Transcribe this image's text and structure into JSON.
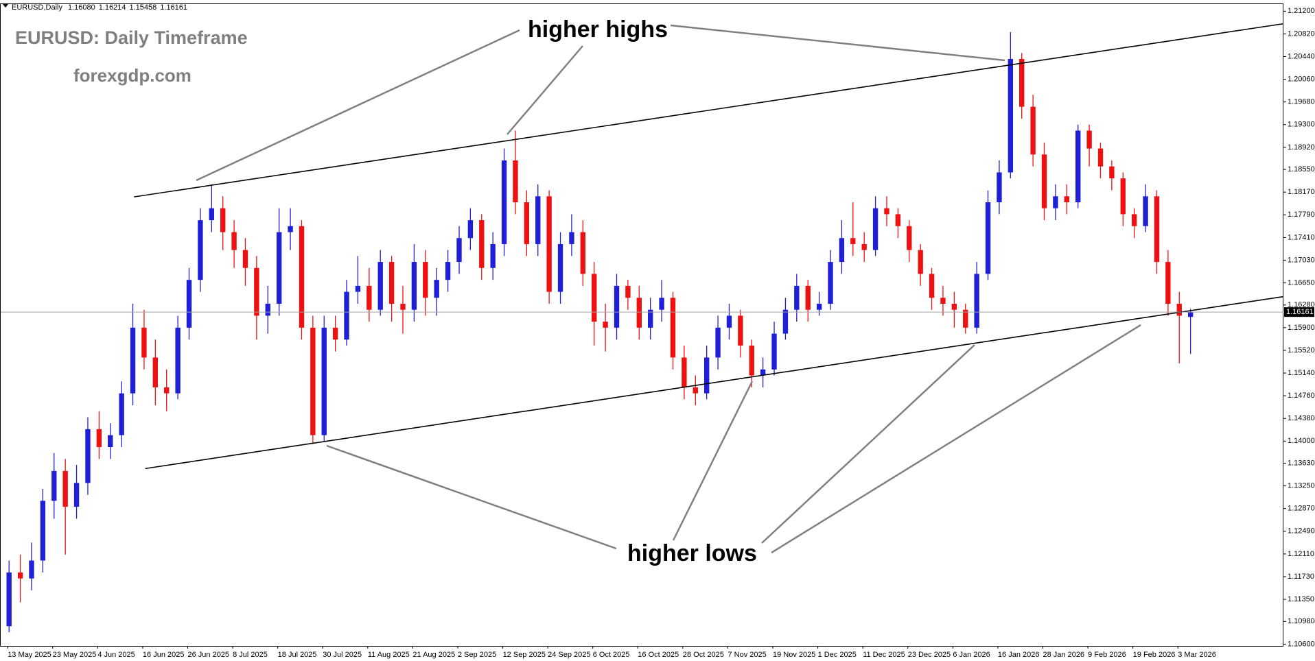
{
  "chart_data": {
    "type": "candlestick",
    "title": "EURUSD: Daily Timeframe",
    "subtitle": "forexgdp.com",
    "symbol": "EURUSD,Daily",
    "ohlc_labels": [
      "1.16080",
      "1.16214",
      "1.15458",
      "1.16161"
    ],
    "annotations": [
      "higher highs",
      "higher lows"
    ],
    "bull_color": "#1f1fd6",
    "bear_color": "#ee1111",
    "ylim": [
      1.1057,
      1.2133
    ],
    "yticks": [
      {
        "value": 1.212,
        "label": "1.21200"
      },
      {
        "value": 1.2082,
        "label": "1.20820"
      },
      {
        "value": 1.2044,
        "label": "1.20440"
      },
      {
        "value": 1.2006,
        "label": "1.20060"
      },
      {
        "value": 1.1968,
        "label": "1.19680"
      },
      {
        "value": 1.193,
        "label": "1.19300"
      },
      {
        "value": 1.1892,
        "label": "1.18920"
      },
      {
        "value": 1.1855,
        "label": "1.18550"
      },
      {
        "value": 1.1817,
        "label": "1.18170"
      },
      {
        "value": 1.1779,
        "label": "1.17790"
      },
      {
        "value": 1.1741,
        "label": "1.17410"
      },
      {
        "value": 1.1703,
        "label": "1.17030"
      },
      {
        "value": 1.1665,
        "label": "1.16650"
      },
      {
        "value": 1.1628,
        "label": "1.16280"
      },
      {
        "value": 1.159,
        "label": "1.15900"
      },
      {
        "value": 1.1552,
        "label": "1.15520"
      },
      {
        "value": 1.1514,
        "label": "1.15140"
      },
      {
        "value": 1.1476,
        "label": "1.14760"
      },
      {
        "value": 1.1438,
        "label": "1.14380"
      },
      {
        "value": 1.14,
        "label": "1.14000"
      },
      {
        "value": 1.1363,
        "label": "1.13630"
      },
      {
        "value": 1.1325,
        "label": "1.13250"
      },
      {
        "value": 1.1287,
        "label": "1.12870"
      },
      {
        "value": 1.1249,
        "label": "1.12490"
      },
      {
        "value": 1.1211,
        "label": "1.12110"
      },
      {
        "value": 1.1173,
        "label": "1.11730"
      },
      {
        "value": 1.1135,
        "label": "1.11350"
      },
      {
        "value": 1.1098,
        "label": "1.10980"
      },
      {
        "value": 1.106,
        "label": "1.10600"
      }
    ],
    "categories": [
      "13 May 2025",
      null,
      null,
      null,
      "23 May 2025",
      null,
      null,
      null,
      "4 Jun 2025",
      null,
      null,
      null,
      "16 Jun 2025",
      null,
      null,
      null,
      "26 Jun 2025",
      null,
      null,
      null,
      "8 Jul 2025",
      null,
      null,
      null,
      "18 Jul 2025",
      null,
      null,
      null,
      "30 Jul 2025",
      null,
      null,
      null,
      "11 Aug 2025",
      null,
      null,
      null,
      "21 Aug 2025",
      null,
      null,
      null,
      "2 Sep 2025",
      null,
      null,
      null,
      "12 Sep 2025",
      null,
      null,
      null,
      "24 Sep 2025",
      null,
      null,
      null,
      "6 Oct 2025",
      null,
      null,
      null,
      "16 Oct 2025",
      null,
      null,
      null,
      "28 Oct 2025",
      null,
      null,
      null,
      "7 Nov 2025",
      null,
      null,
      null,
      "19 Nov 2025",
      null,
      null,
      null,
      "1 Dec 2025",
      null,
      null,
      null,
      "11 Dec 2025",
      null,
      null,
      null,
      "23 Dec 2025",
      null,
      null,
      null,
      "6 Jan 2026",
      null,
      null,
      null,
      "16 Jan 2026",
      null,
      null,
      null,
      "28 Jan 2026",
      null,
      null,
      null,
      "9 Feb 2026",
      null,
      null,
      null,
      "19 Feb 2026",
      null,
      null,
      null,
      "3 Mar 2026",
      null
    ],
    "candles": [
      [
        1.109,
        1.12,
        1.108,
        1.118
      ],
      [
        1.118,
        1.121,
        1.113,
        1.117
      ],
      [
        1.117,
        1.123,
        1.115,
        1.12
      ],
      [
        1.12,
        1.132,
        1.118,
        1.13
      ],
      [
        1.13,
        1.138,
        1.127,
        1.135
      ],
      [
        1.135,
        1.137,
        1.121,
        1.129
      ],
      [
        1.129,
        1.136,
        1.127,
        1.133
      ],
      [
        1.133,
        1.144,
        1.131,
        1.142
      ],
      [
        1.142,
        1.145,
        1.137,
        1.139
      ],
      [
        1.139,
        1.143,
        1.137,
        1.141
      ],
      [
        1.141,
        1.15,
        1.139,
        1.148
      ],
      [
        1.148,
        1.163,
        1.146,
        1.159
      ],
      [
        1.159,
        1.162,
        1.152,
        1.154
      ],
      [
        1.154,
        1.157,
        1.146,
        1.149
      ],
      [
        1.149,
        1.152,
        1.145,
        1.148
      ],
      [
        1.148,
        1.161,
        1.147,
        1.159
      ],
      [
        1.159,
        1.169,
        1.157,
        1.167
      ],
      [
        1.167,
        1.179,
        1.165,
        1.177
      ],
      [
        1.177,
        1.183,
        1.175,
        1.179
      ],
      [
        1.179,
        1.181,
        1.172,
        1.175
      ],
      [
        1.175,
        1.177,
        1.169,
        1.172
      ],
      [
        1.172,
        1.174,
        1.166,
        1.169
      ],
      [
        1.169,
        1.171,
        1.157,
        1.161
      ],
      [
        1.161,
        1.166,
        1.158,
        1.163
      ],
      [
        1.163,
        1.179,
        1.161,
        1.175
      ],
      [
        1.175,
        1.179,
        1.172,
        1.176
      ],
      [
        1.176,
        1.177,
        1.157,
        1.159
      ],
      [
        1.159,
        1.161,
        1.1395,
        1.141
      ],
      [
        1.141,
        1.161,
        1.14,
        1.159
      ],
      [
        1.159,
        1.161,
        1.155,
        1.157
      ],
      [
        1.157,
        1.167,
        1.156,
        1.165
      ],
      [
        1.165,
        1.171,
        1.163,
        1.166
      ],
      [
        1.166,
        1.169,
        1.16,
        1.162
      ],
      [
        1.162,
        1.172,
        1.161,
        1.17
      ],
      [
        1.17,
        1.171,
        1.16,
        1.163
      ],
      [
        1.163,
        1.166,
        1.158,
        1.162
      ],
      [
        1.162,
        1.173,
        1.16,
        1.17
      ],
      [
        1.17,
        1.172,
        1.161,
        1.164
      ],
      [
        1.164,
        1.169,
        1.161,
        1.167
      ],
      [
        1.167,
        1.172,
        1.165,
        1.17
      ],
      [
        1.17,
        1.176,
        1.168,
        1.174
      ],
      [
        1.174,
        1.179,
        1.172,
        1.177
      ],
      [
        1.177,
        1.178,
        1.167,
        1.169
      ],
      [
        1.169,
        1.175,
        1.167,
        1.173
      ],
      [
        1.173,
        1.189,
        1.171,
        1.187
      ],
      [
        1.187,
        1.192,
        1.178,
        1.18
      ],
      [
        1.18,
        1.182,
        1.171,
        1.173
      ],
      [
        1.173,
        1.183,
        1.171,
        1.181
      ],
      [
        1.181,
        1.182,
        1.163,
        1.165
      ],
      [
        1.165,
        1.175,
        1.163,
        1.173
      ],
      [
        1.173,
        1.178,
        1.171,
        1.175
      ],
      [
        1.175,
        1.177,
        1.166,
        1.168
      ],
      [
        1.168,
        1.17,
        1.156,
        1.16
      ],
      [
        1.16,
        1.163,
        1.155,
        1.159
      ],
      [
        1.159,
        1.168,
        1.157,
        1.166
      ],
      [
        1.166,
        1.167,
        1.162,
        1.164
      ],
      [
        1.164,
        1.166,
        1.157,
        1.159
      ],
      [
        1.159,
        1.164,
        1.157,
        1.162
      ],
      [
        1.162,
        1.167,
        1.16,
        1.164
      ],
      [
        1.164,
        1.165,
        1.152,
        1.154
      ],
      [
        1.154,
        1.156,
        1.147,
        1.149
      ],
      [
        1.149,
        1.151,
        1.146,
        1.148
      ],
      [
        1.148,
        1.156,
        1.147,
        1.154
      ],
      [
        1.154,
        1.161,
        1.152,
        1.159
      ],
      [
        1.159,
        1.163,
        1.157,
        1.161
      ],
      [
        1.161,
        1.162,
        1.154,
        1.156
      ],
      [
        1.156,
        1.157,
        1.149,
        1.151
      ],
      [
        1.151,
        1.154,
        1.149,
        1.152
      ],
      [
        1.152,
        1.16,
        1.151,
        1.158
      ],
      [
        1.158,
        1.164,
        1.157,
        1.162
      ],
      [
        1.162,
        1.168,
        1.16,
        1.166
      ],
      [
        1.166,
        1.167,
        1.16,
        1.162
      ],
      [
        1.162,
        1.165,
        1.161,
        1.163
      ],
      [
        1.163,
        1.172,
        1.162,
        1.17
      ],
      [
        1.17,
        1.177,
        1.168,
        1.174
      ],
      [
        1.174,
        1.18,
        1.171,
        1.173
      ],
      [
        1.173,
        1.175,
        1.17,
        1.172
      ],
      [
        1.172,
        1.181,
        1.171,
        1.179
      ],
      [
        1.179,
        1.181,
        1.176,
        1.178
      ],
      [
        1.178,
        1.179,
        1.174,
        1.176
      ],
      [
        1.176,
        1.177,
        1.17,
        1.172
      ],
      [
        1.172,
        1.173,
        1.166,
        1.168
      ],
      [
        1.168,
        1.169,
        1.162,
        1.164
      ],
      [
        1.164,
        1.166,
        1.161,
        1.163
      ],
      [
        1.163,
        1.165,
        1.159,
        1.162
      ],
      [
        1.162,
        1.163,
        1.158,
        1.159
      ],
      [
        1.159,
        1.17,
        1.158,
        1.168
      ],
      [
        1.168,
        1.182,
        1.167,
        1.18
      ],
      [
        1.18,
        1.187,
        1.178,
        1.185
      ],
      [
        1.185,
        1.2085,
        1.184,
        1.204
      ],
      [
        1.204,
        1.205,
        1.194,
        1.196
      ],
      [
        1.196,
        1.198,
        1.186,
        1.188
      ],
      [
        1.188,
        1.19,
        1.177,
        1.179
      ],
      [
        1.179,
        1.183,
        1.177,
        1.181
      ],
      [
        1.181,
        1.183,
        1.178,
        1.18
      ],
      [
        1.18,
        1.193,
        1.179,
        1.192
      ],
      [
        1.192,
        1.193,
        1.186,
        1.189
      ],
      [
        1.189,
        1.19,
        1.184,
        1.186
      ],
      [
        1.186,
        1.187,
        1.182,
        1.184
      ],
      [
        1.184,
        1.185,
        1.176,
        1.178
      ],
      [
        1.178,
        1.179,
        1.174,
        1.176
      ],
      [
        1.176,
        1.183,
        1.175,
        1.181
      ],
      [
        1.181,
        1.182,
        1.168,
        1.17
      ],
      [
        1.17,
        1.172,
        1.161,
        1.163
      ],
      [
        1.163,
        1.165,
        1.153,
        1.161
      ],
      [
        1.1608,
        1.16214,
        1.15458,
        1.16161
      ]
    ],
    "trendlines": [
      {
        "points": [
          [
            11.1,
            1.1809
          ],
          [
            113.9,
            1.2099
          ]
        ]
      },
      {
        "points": [
          [
            12.1,
            1.1354
          ],
          [
            113.9,
            1.1642
          ]
        ]
      }
    ]
  }
}
